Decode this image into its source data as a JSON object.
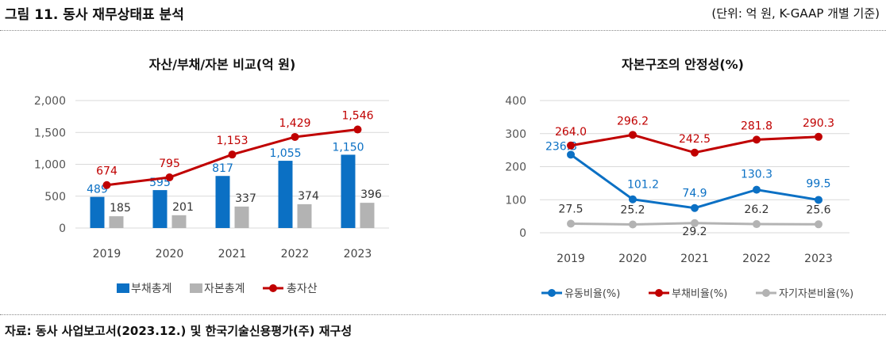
{
  "header": {
    "title": "그림 11. 동사 재무상태표 분석",
    "unit": "(단위: 억 원, K-GAAP 개별 기준)"
  },
  "footer": {
    "source": "자료: 동사 사업보고서(2023.12.) 및 한국기술신용평가(주) 재구성"
  },
  "colors": {
    "blue": "#0b70c4",
    "gray": "#b3b3b3",
    "red": "#c00000",
    "grid": "#d9d9d9"
  },
  "chart_data": [
    {
      "type": "bar",
      "title": "자산/부채/자본 비교(억 원)",
      "categories": [
        "2019",
        "2020",
        "2021",
        "2022",
        "2023"
      ],
      "ylim": [
        0,
        2000
      ],
      "yticks": [
        "0",
        "500",
        "1,000",
        "1,500",
        "2,000"
      ],
      "grid": true,
      "legend_position": "bottom",
      "series": [
        {
          "name": "부채총계",
          "kind": "bar",
          "color": "#0b70c4",
          "values": [
            489,
            595,
            817,
            1055,
            1150
          ],
          "labels": [
            "489",
            "595",
            "817",
            "1,055",
            "1,150"
          ]
        },
        {
          "name": "자본총계",
          "kind": "bar",
          "color": "#b3b3b3",
          "values": [
            185,
            201,
            337,
            374,
            396
          ],
          "labels": [
            "185",
            "201",
            "337",
            "374",
            "396"
          ]
        },
        {
          "name": "총자산",
          "kind": "line",
          "color": "#c00000",
          "values": [
            674,
            795,
            1153,
            1429,
            1546
          ],
          "labels": [
            "674",
            "795",
            "1,153",
            "1,429",
            "1,546"
          ]
        }
      ]
    },
    {
      "type": "line",
      "title": "자본구조의 안정성(%)",
      "categories": [
        "2019",
        "2020",
        "2021",
        "2022",
        "2023"
      ],
      "ylim": [
        0,
        400
      ],
      "yticks": [
        "0",
        "100",
        "200",
        "300",
        "400"
      ],
      "grid": true,
      "legend_position": "bottom",
      "series": [
        {
          "name": "유동비율(%)",
          "color": "#0b70c4",
          "values": [
            236.3,
            101.2,
            74.9,
            130.3,
            99.5
          ],
          "labels": [
            "236.3",
            "101.2",
            "74.9",
            "130.3",
            "99.5"
          ]
        },
        {
          "name": "부채비율(%)",
          "color": "#c00000",
          "values": [
            264.0,
            296.2,
            242.5,
            281.8,
            290.3
          ],
          "labels": [
            "264.0",
            "296.2",
            "242.5",
            "281.8",
            "290.3"
          ]
        },
        {
          "name": "자기자본비율(%)",
          "color": "#b3b3b3",
          "values": [
            27.5,
            25.2,
            29.2,
            26.2,
            25.6
          ],
          "labels": [
            "27.5",
            "25.2",
            "29.2",
            "26.2",
            "25.6"
          ]
        }
      ]
    }
  ]
}
